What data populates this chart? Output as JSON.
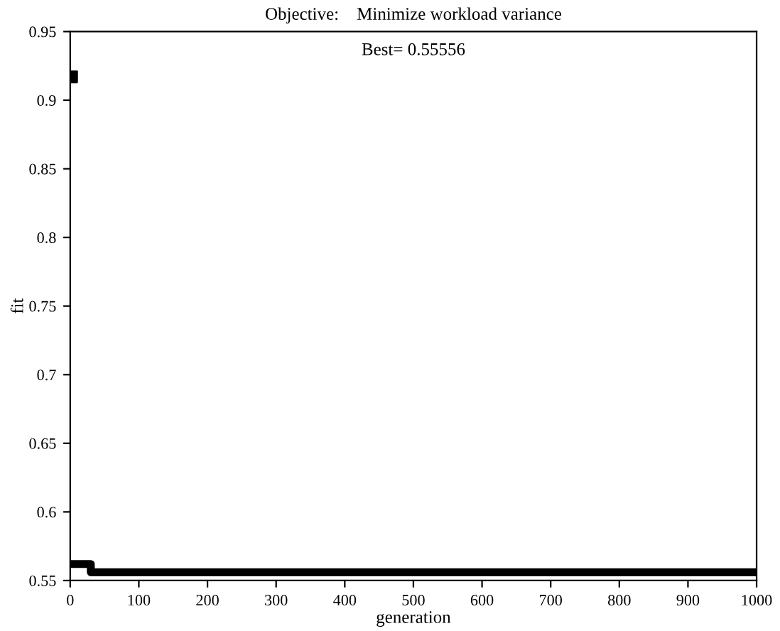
{
  "chart_data": {
    "type": "line",
    "title": "Objective:    Minimize workload variance",
    "xlabel": "generation",
    "ylabel": "fit",
    "annotations": [
      "Best= 0.55556"
    ],
    "series": [
      {
        "type": "scatter",
        "color": "#000000",
        "x": [
          2
        ],
        "values": [
          0.917
        ],
        "marker": "square"
      },
      {
        "color": "#000000",
        "x": [
          5,
          30,
          30,
          1000
        ],
        "values": [
          0.562,
          0.562,
          0.556,
          0.556
        ]
      }
    ],
    "xlim": [
      0,
      1000
    ],
    "ylim": [
      0.55,
      0.95
    ],
    "xticks": [
      0,
      100,
      200,
      300,
      400,
      500,
      600,
      700,
      800,
      900,
      1000
    ],
    "yticks": [
      0.55,
      0.6,
      0.65,
      0.7,
      0.75,
      0.8,
      0.85,
      0.9,
      0.95
    ],
    "grid": false
  }
}
